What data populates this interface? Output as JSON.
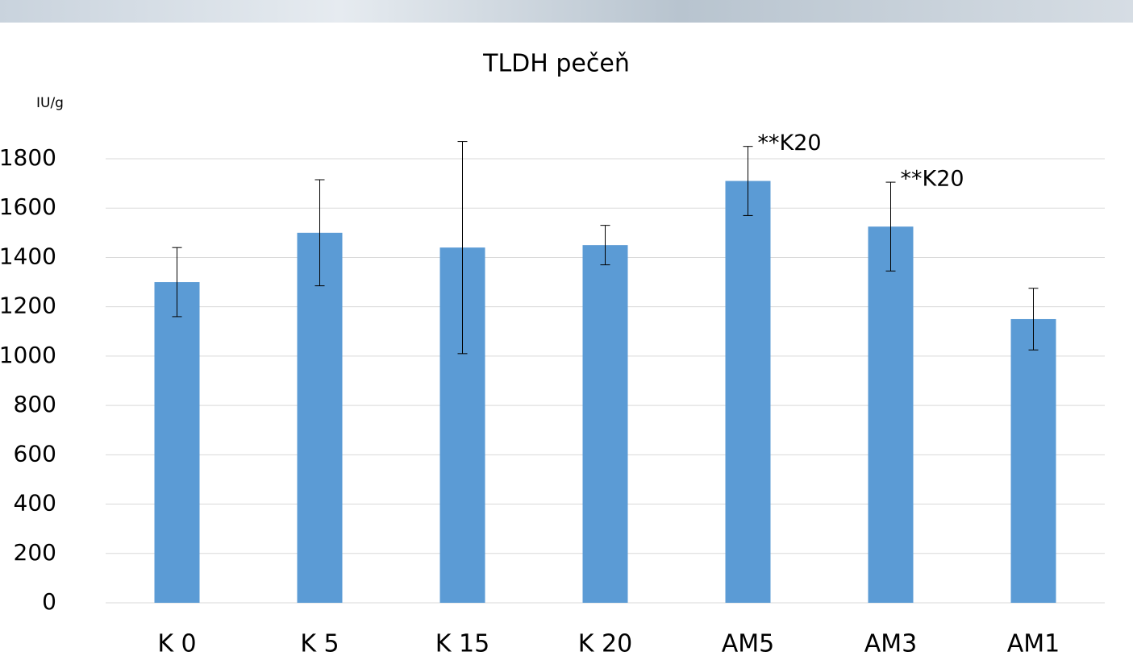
{
  "chart_data": {
    "type": "bar",
    "title": "TLDH pečeň",
    "y_label": "IU/g",
    "categories": [
      "K 0",
      "K 5",
      "K 15",
      "K 20",
      "AM5",
      "AM3",
      "AM1"
    ],
    "values": [
      1300,
      1500,
      1440,
      1450,
      1710,
      1525,
      1150
    ],
    "errors": [
      140,
      215,
      430,
      80,
      140,
      180,
      125
    ],
    "color": "#5b9bd5",
    "annotations": [
      "**K20",
      "**K20"
    ],
    "ylim": [
      0,
      1800
    ],
    "yticks": [
      0,
      200,
      400,
      600,
      800,
      1000,
      1200,
      1400,
      1600,
      1800
    ],
    "grid": true
  }
}
